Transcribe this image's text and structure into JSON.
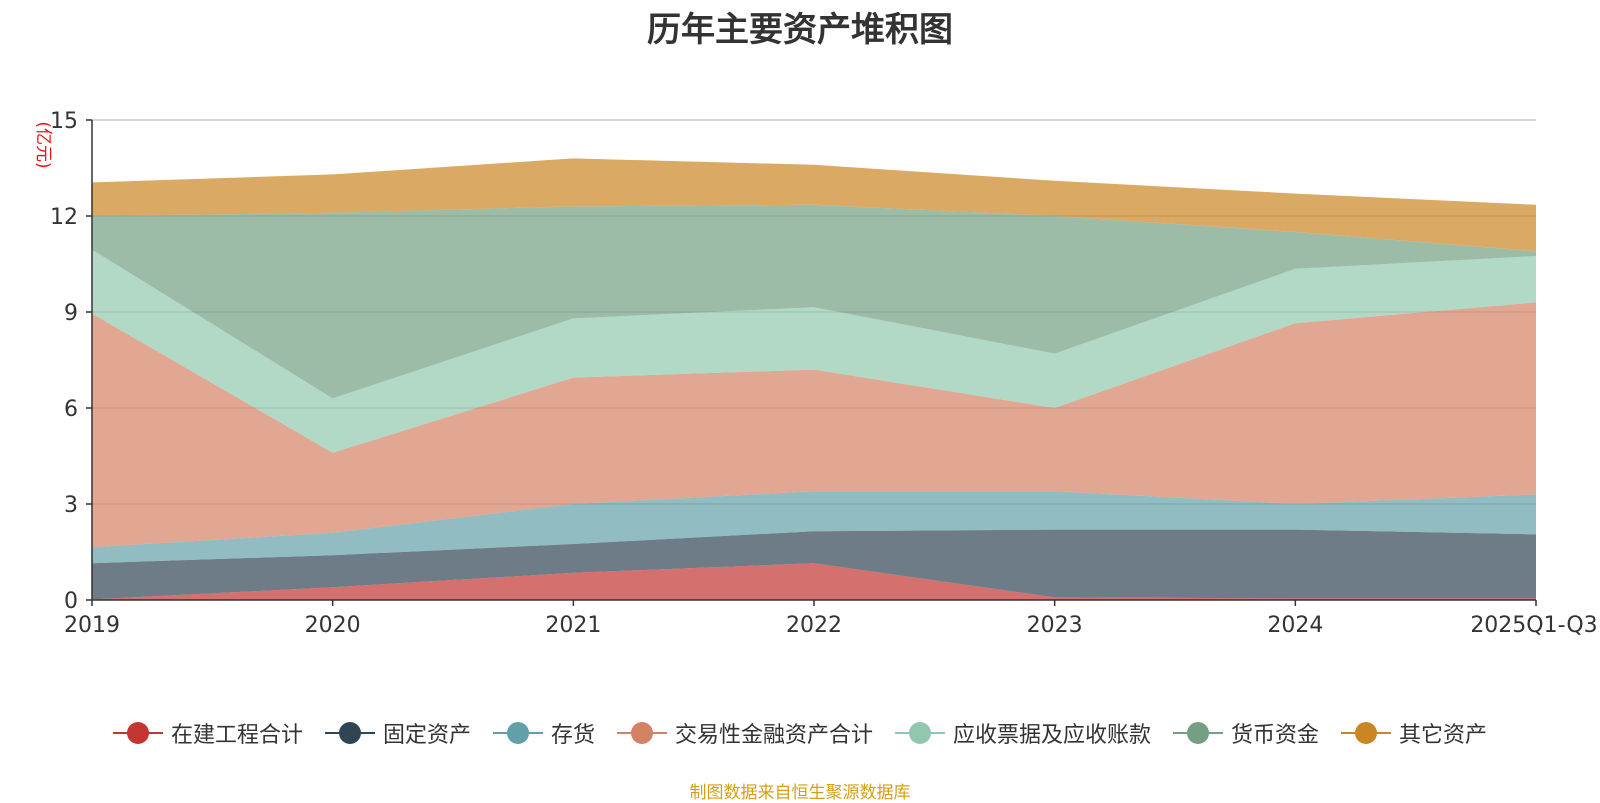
{
  "chart_data": {
    "type": "area",
    "stacked": true,
    "title": "历年主要资产堆积图",
    "ylabel": "(亿元)",
    "xlabel": "",
    "ylim": [
      0,
      15
    ],
    "yticks": [
      0,
      3,
      6,
      9,
      12,
      15
    ],
    "categories": [
      "2019",
      "2020",
      "2021",
      "2022",
      "2023",
      "2024",
      "2025Q1-Q3"
    ],
    "series": [
      {
        "name": "在建工程合计",
        "color": "#c23531",
        "values": [
          0.02,
          0.4,
          0.85,
          1.15,
          0.08,
          0.05,
          0.05
        ]
      },
      {
        "name": "固定资产",
        "color": "#2f4554",
        "values": [
          1.13,
          1.0,
          0.9,
          1.0,
          2.12,
          2.15,
          2.0
        ]
      },
      {
        "name": "存货",
        "color": "#61a0a8",
        "values": [
          0.5,
          0.7,
          1.25,
          1.25,
          1.2,
          0.8,
          1.25
        ]
      },
      {
        "name": "交易性金融资产合计",
        "color": "#d48265",
        "values": [
          7.3,
          2.5,
          3.95,
          3.8,
          2.6,
          5.65,
          6.0
        ]
      },
      {
        "name": "应收票据及应收账款",
        "color": "#91c7ae",
        "values": [
          2.0,
          1.7,
          1.85,
          1.95,
          1.7,
          1.7,
          1.45
        ]
      },
      {
        "name": "货币资金",
        "color": "#749f83",
        "values": [
          1.05,
          5.8,
          3.5,
          3.2,
          4.3,
          1.15,
          0.15
        ]
      },
      {
        "name": "其它资产",
        "color": "#ca8622",
        "values": [
          1.05,
          1.2,
          1.5,
          1.25,
          1.1,
          1.2,
          1.45
        ]
      }
    ],
    "grid": true,
    "legend_position": "bottom"
  },
  "source_note": "制图数据来自恒生聚源数据库"
}
